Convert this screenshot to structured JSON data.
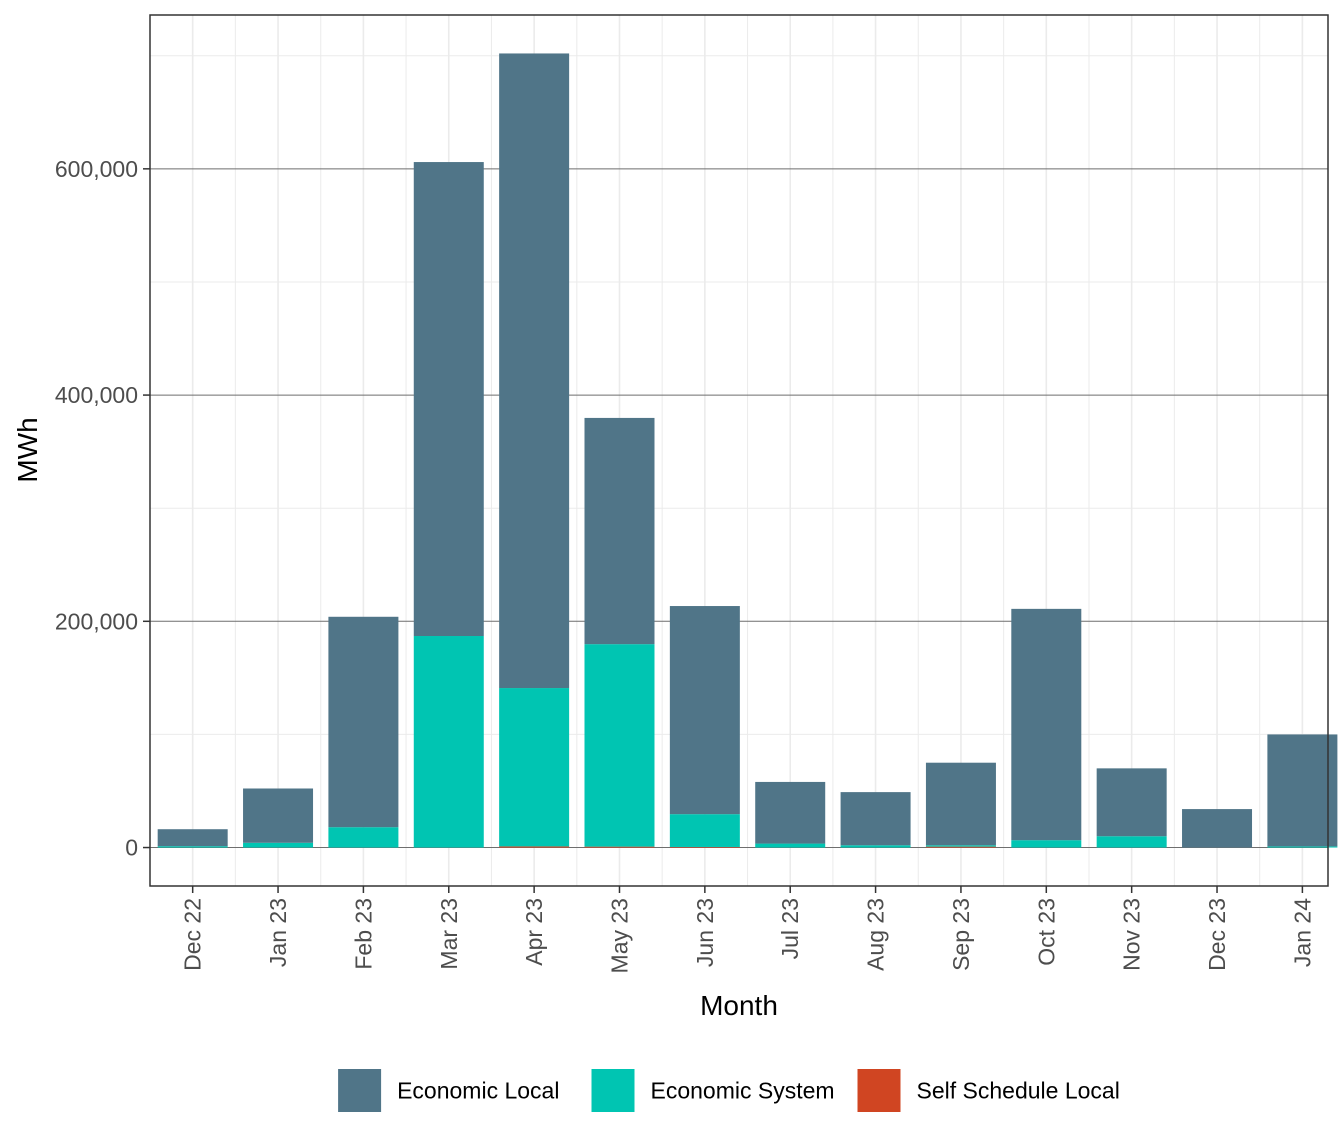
{
  "chart_data": {
    "type": "bar",
    "stacked": true,
    "categories": [
      "Dec 22",
      "Jan 23",
      "Feb 23",
      "Mar 23",
      "Apr 23",
      "May 23",
      "Jun 23",
      "Jul 23",
      "Aug 23",
      "Sep 23",
      "Oct 23",
      "Nov 23",
      "Dec 23",
      "Jan 24"
    ],
    "series": [
      {
        "name": "Self Schedule Local",
        "color": "#D04522",
        "values": [
          0,
          0,
          0,
          0,
          1000,
          800,
          500,
          0,
          0,
          800,
          0,
          0,
          0,
          0
        ]
      },
      {
        "name": "Economic System",
        "color": "#00C5B2",
        "values": [
          1200,
          4200,
          18000,
          187000,
          140000,
          179000,
          29000,
          3500,
          2000,
          1200,
          6500,
          10000,
          0,
          1000
        ]
      },
      {
        "name": "Economic Local",
        "color": "#507588",
        "values": [
          15000,
          48000,
          186000,
          419000,
          561000,
          200000,
          184000,
          54500,
          47000,
          73000,
          204500,
          60000,
          34000,
          99000
        ]
      }
    ],
    "legend_order": [
      "Economic Local",
      "Economic System",
      "Self Schedule Local"
    ],
    "xlabel": "Month",
    "ylabel": "MWh",
    "ylim": [
      -34000,
      736000
    ],
    "yticks": [
      0,
      200000,
      400000,
      600000
    ],
    "ytick_labels": [
      "0",
      "200,000",
      "400,000",
      "600,000"
    ],
    "grid": true,
    "legend_position": "bottom"
  }
}
